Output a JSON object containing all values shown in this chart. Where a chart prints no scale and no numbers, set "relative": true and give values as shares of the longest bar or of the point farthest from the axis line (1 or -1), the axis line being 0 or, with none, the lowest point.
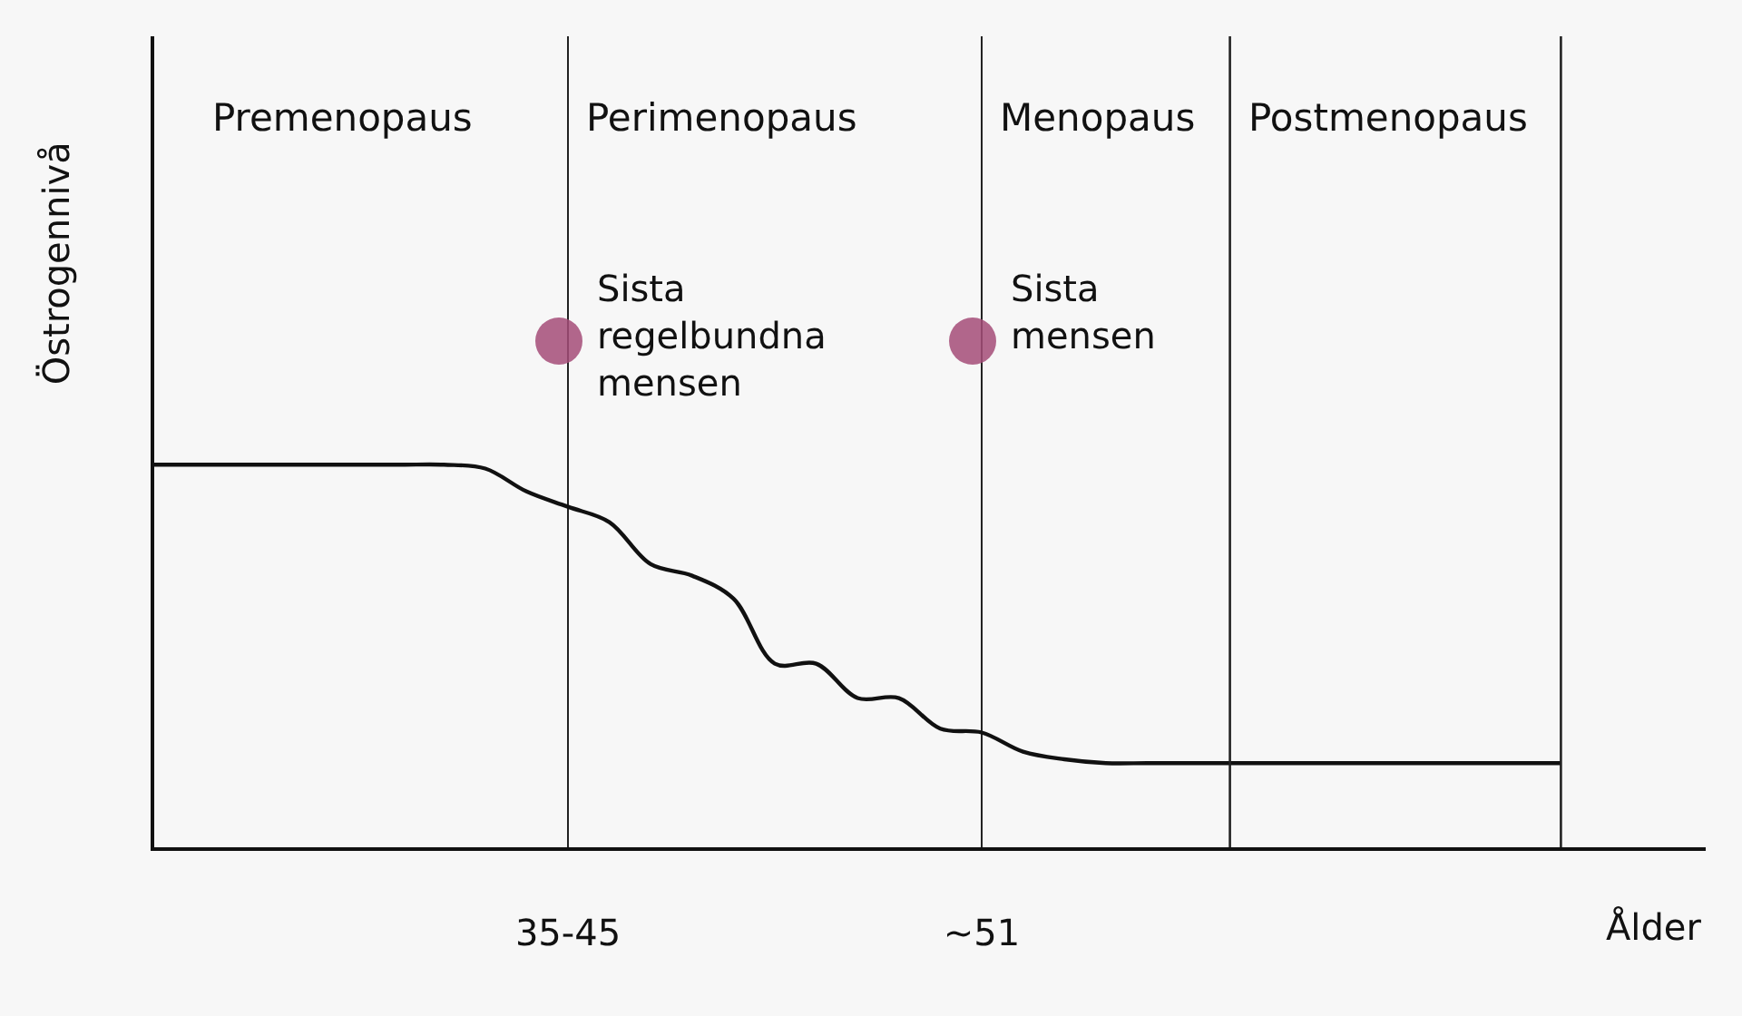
{
  "chart_data": {
    "type": "line",
    "relative": true,
    "xlabel": "Ålder",
    "ylabel": "Östrogennivå",
    "color": "#111111",
    "categories": [
      null,
      null,
      null,
      null,
      null,
      null,
      null,
      null,
      null,
      null,
      "35-45",
      null,
      null,
      null,
      null,
      null,
      null,
      null,
      null,
      null,
      "~51",
      null,
      null,
      null,
      null,
      null,
      null,
      null,
      null,
      null,
      null,
      null,
      null,
      null,
      null
    ],
    "values": [
      1.0,
      1.0,
      1.0,
      1.0,
      1.0,
      1.0,
      1.0,
      1.0,
      0.99,
      0.93,
      0.89,
      0.85,
      0.74,
      0.71,
      0.65,
      0.48,
      0.48,
      0.39,
      0.39,
      0.31,
      0.3,
      0.25,
      0.23,
      0.22,
      0.22,
      0.22,
      0.22,
      0.22,
      0.22,
      0.22,
      0.22,
      0.22,
      0.22,
      0.22,
      0.22
    ],
    "tick_labels": "x",
    "grid": "x",
    "annotations": [
      "Premenopaus",
      "Perimenopaus",
      "Menopaus",
      "Postmenopaus",
      "Sista\nregelbundna\nmensen",
      "Sista\nmensen"
    ]
  }
}
